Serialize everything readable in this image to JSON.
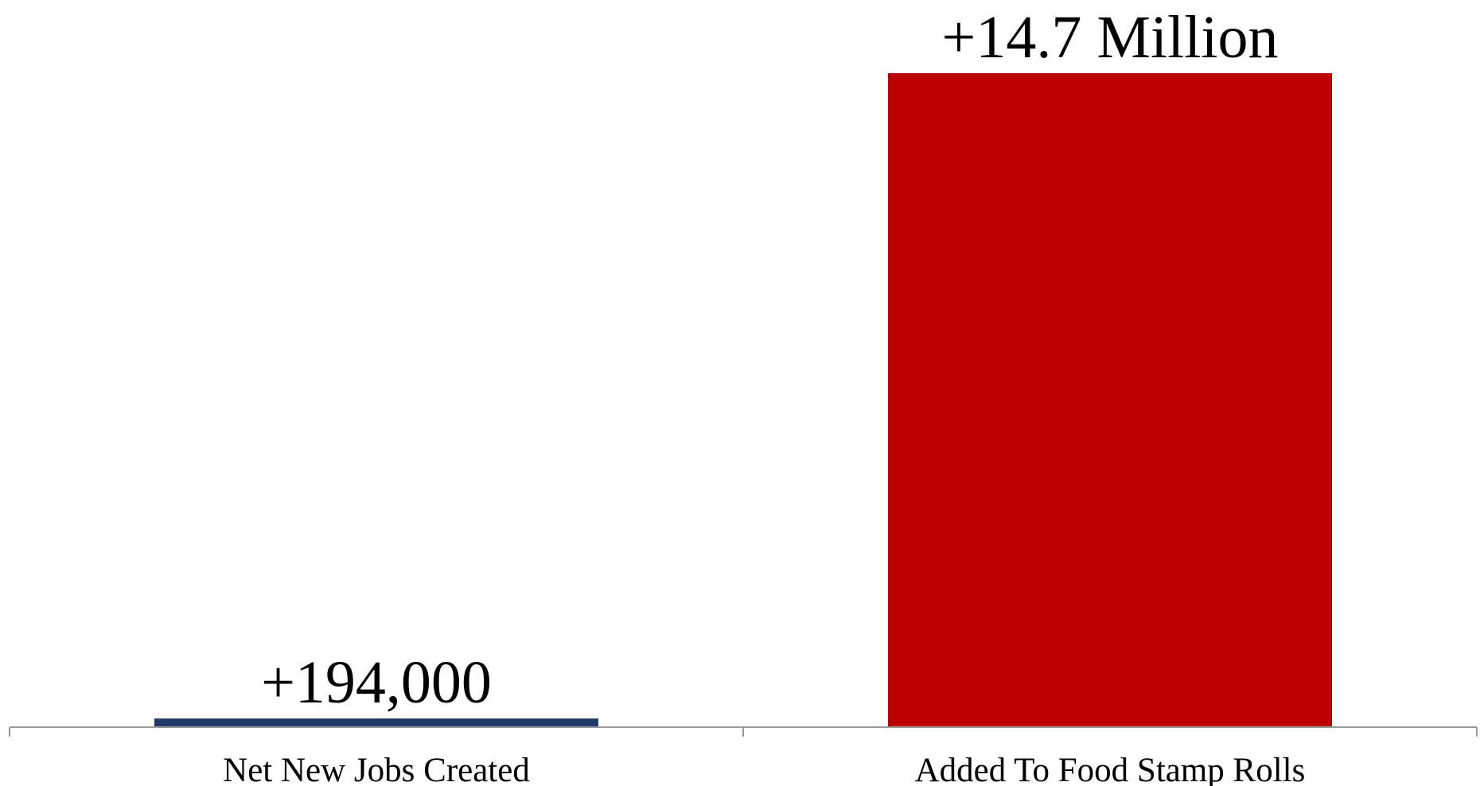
{
  "chart_data": {
    "type": "bar",
    "categories": [
      "Net New Jobs Created",
      "Added To Food Stamp Rolls"
    ],
    "values": [
      194000,
      14700000
    ],
    "data_labels": [
      "+194,000",
      "+14.7 Million"
    ],
    "colors": [
      "#1f3a68",
      "#bb0000"
    ],
    "title": "",
    "xlabel": "",
    "ylabel": "",
    "ylim": [
      0,
      14700000
    ],
    "grid": false,
    "legend": "none"
  }
}
